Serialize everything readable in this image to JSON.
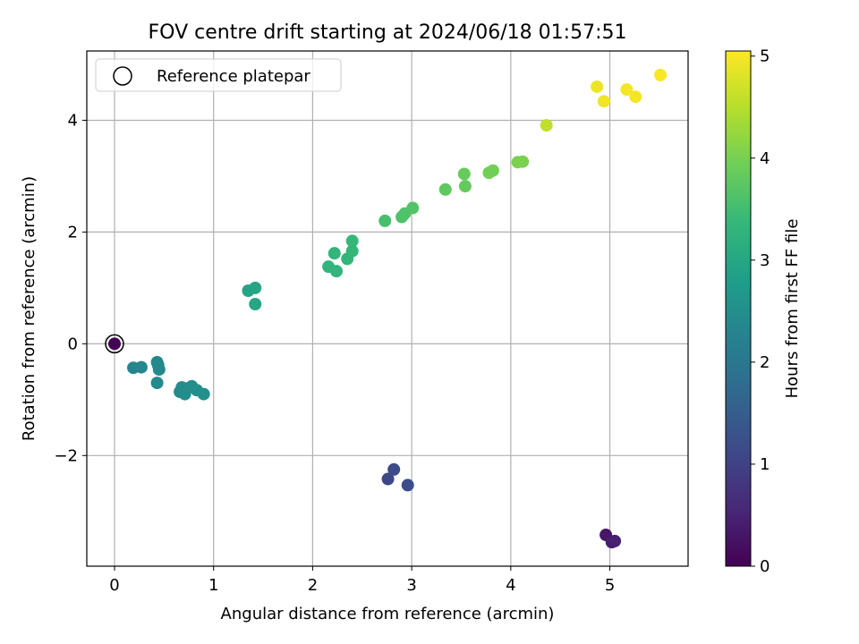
{
  "chart_data": {
    "type": "scatter",
    "title": "FOV centre drift starting at 2024/06/18 01:57:51",
    "xlabel": "Angular distance from reference (arcmin)",
    "ylabel": "Rotation from reference (arcmin)",
    "xlim": [
      -0.28,
      5.79
    ],
    "ylim": [
      -3.98,
      5.24
    ],
    "xticks": [
      0,
      1,
      2,
      3,
      4,
      5
    ],
    "yticks": [
      -2,
      0,
      2,
      4
    ],
    "ytick_labels": [
      "−2",
      "0",
      "2",
      "4"
    ],
    "grid": true,
    "legend": {
      "placement": "top-left",
      "entries": [
        "Reference platepar"
      ]
    },
    "reference_point": {
      "x": 0,
      "y": 0,
      "marker": "open-circle"
    },
    "colorbar": {
      "label": "Hours from first FF file",
      "range": [
        0,
        5.05
      ],
      "ticks": [
        0,
        1,
        2,
        3,
        4,
        5
      ],
      "colormap": "viridis",
      "colors": [
        "#440154",
        "#482878",
        "#3e4989",
        "#31688e",
        "#26828e",
        "#1f9e89",
        "#35b779",
        "#6ece58",
        "#b5de2b",
        "#fde725"
      ]
    },
    "points": [
      {
        "x": 0.0,
        "y": 0.0,
        "t": 0.0
      },
      {
        "x": 4.96,
        "y": -3.42,
        "t": 0.3
      },
      {
        "x": 5.02,
        "y": -3.55,
        "t": 0.4
      },
      {
        "x": 5.05,
        "y": -3.53,
        "t": 0.45
      },
      {
        "x": 2.76,
        "y": -2.42,
        "t": 1.1
      },
      {
        "x": 2.82,
        "y": -2.25,
        "t": 1.15
      },
      {
        "x": 2.96,
        "y": -2.53,
        "t": 1.2
      },
      {
        "x": 0.19,
        "y": -0.43,
        "t": 2.3
      },
      {
        "x": 0.27,
        "y": -0.42,
        "t": 2.32
      },
      {
        "x": 0.43,
        "y": -0.33,
        "t": 2.35
      },
      {
        "x": 0.44,
        "y": -0.38,
        "t": 2.37
      },
      {
        "x": 0.45,
        "y": -0.46,
        "t": 2.38
      },
      {
        "x": 0.43,
        "y": -0.7,
        "t": 2.4
      },
      {
        "x": 0.66,
        "y": -0.86,
        "t": 2.42
      },
      {
        "x": 0.68,
        "y": -0.78,
        "t": 2.44
      },
      {
        "x": 0.71,
        "y": -0.9,
        "t": 2.46
      },
      {
        "x": 0.72,
        "y": -0.8,
        "t": 2.47
      },
      {
        "x": 0.78,
        "y": -0.76,
        "t": 2.48
      },
      {
        "x": 0.83,
        "y": -0.83,
        "t": 2.5
      },
      {
        "x": 0.9,
        "y": -0.9,
        "t": 2.52
      },
      {
        "x": 1.35,
        "y": 0.95,
        "t": 2.95
      },
      {
        "x": 1.42,
        "y": 1.0,
        "t": 2.97
      },
      {
        "x": 1.42,
        "y": 0.71,
        "t": 2.98
      },
      {
        "x": 2.16,
        "y": 1.38,
        "t": 3.28
      },
      {
        "x": 2.22,
        "y": 1.62,
        "t": 3.3
      },
      {
        "x": 2.24,
        "y": 1.3,
        "t": 3.3
      },
      {
        "x": 2.35,
        "y": 1.52,
        "t": 3.32
      },
      {
        "x": 2.4,
        "y": 1.66,
        "t": 3.35
      },
      {
        "x": 2.4,
        "y": 1.84,
        "t": 3.36
      },
      {
        "x": 2.73,
        "y": 2.2,
        "t": 3.55
      },
      {
        "x": 2.9,
        "y": 2.27,
        "t": 3.62
      },
      {
        "x": 2.93,
        "y": 2.33,
        "t": 3.63
      },
      {
        "x": 3.01,
        "y": 2.43,
        "t": 3.66
      },
      {
        "x": 3.34,
        "y": 2.76,
        "t": 3.78
      },
      {
        "x": 3.53,
        "y": 3.04,
        "t": 3.85
      },
      {
        "x": 3.54,
        "y": 2.82,
        "t": 3.84
      },
      {
        "x": 3.78,
        "y": 3.06,
        "t": 3.95
      },
      {
        "x": 3.82,
        "y": 3.1,
        "t": 3.96
      },
      {
        "x": 4.07,
        "y": 3.25,
        "t": 4.02
      },
      {
        "x": 4.12,
        "y": 3.26,
        "t": 4.04
      },
      {
        "x": 4.36,
        "y": 3.91,
        "t": 4.58
      },
      {
        "x": 4.87,
        "y": 4.6,
        "t": 4.92
      },
      {
        "x": 4.94,
        "y": 4.34,
        "t": 4.95
      },
      {
        "x": 5.17,
        "y": 4.55,
        "t": 4.97
      },
      {
        "x": 5.26,
        "y": 4.42,
        "t": 4.98
      },
      {
        "x": 5.51,
        "y": 4.81,
        "t": 5.02
      }
    ]
  }
}
